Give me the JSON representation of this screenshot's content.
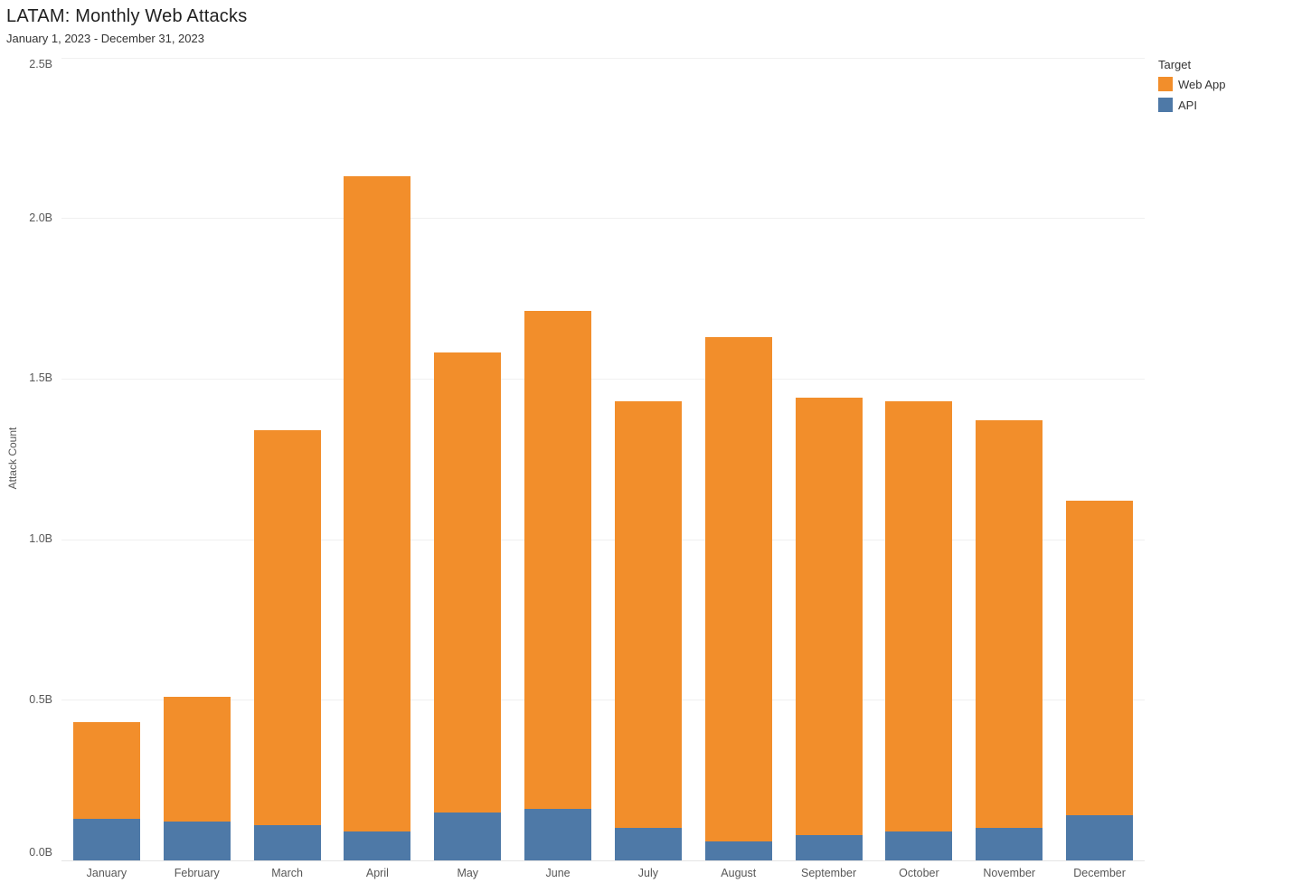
{
  "header": {
    "title": "LATAM: Monthly Web Attacks",
    "subtitle": "January 1, 2023 - December 31, 2023"
  },
  "legend": {
    "title": "Target",
    "items": [
      {
        "label": "Web App",
        "color": "#F28E2B"
      },
      {
        "label": "API",
        "color": "#4E79A7"
      }
    ]
  },
  "chart_data": {
    "type": "bar",
    "stacked": true,
    "title": "LATAM: Monthly Web Attacks",
    "subtitle": "January 1, 2023 - December 31, 2023",
    "xlabel": "",
    "ylabel": "Attack Count",
    "unit": "B",
    "categories": [
      "January",
      "February",
      "March",
      "April",
      "May",
      "June",
      "July",
      "August",
      "September",
      "October",
      "November",
      "December"
    ],
    "series": [
      {
        "name": "API",
        "color": "#4E79A7",
        "values": [
          0.13,
          0.12,
          0.11,
          0.09,
          0.15,
          0.16,
          0.1,
          0.06,
          0.08,
          0.09,
          0.1,
          0.14
        ]
      },
      {
        "name": "Web App",
        "color": "#F28E2B",
        "values": [
          0.3,
          0.39,
          1.23,
          2.04,
          1.43,
          1.55,
          1.33,
          1.57,
          1.36,
          1.34,
          1.27,
          0.98
        ]
      }
    ],
    "totals": [
      0.43,
      0.51,
      1.34,
      2.13,
      1.58,
      1.71,
      1.43,
      1.63,
      1.44,
      1.43,
      1.37,
      1.12
    ],
    "stack_order_bottom_to_top": [
      "API",
      "Web App"
    ],
    "ylim": [
      0,
      2.5
    ],
    "ytick_interval": 0.5,
    "ytick_labels": [
      "0.0B",
      "0.5B",
      "1.0B",
      "1.5B",
      "2.0B",
      "2.5B"
    ],
    "grid": true,
    "legend_position": "top-right"
  }
}
